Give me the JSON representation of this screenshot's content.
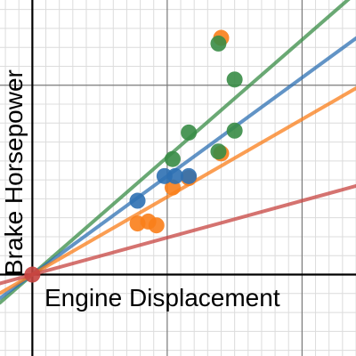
{
  "chart_data": {
    "type": "scatter",
    "title": "",
    "xlabel": "Engine Displacement",
    "ylabel": "Brake Horsepower",
    "grid": true,
    "xlim": [
      -1.2,
      12
    ],
    "ylim": [
      -2.15,
      7.25
    ],
    "series": [
      {
        "color": "#fa7e19",
        "points": [
          [
            7.0,
            6.25
          ],
          [
            7.0,
            3.2
          ],
          [
            5.8,
            2.55
          ],
          [
            5.2,
            2.3
          ],
          [
            3.9,
            1.35
          ],
          [
            4.3,
            1.4
          ],
          [
            4.6,
            1.3
          ]
        ]
      },
      {
        "color": "#388c46",
        "points": [
          [
            6.9,
            6.1
          ],
          [
            7.5,
            5.15
          ],
          [
            5.8,
            3.75
          ],
          [
            5.2,
            3.05
          ],
          [
            7.5,
            3.8
          ],
          [
            6.9,
            3.25
          ]
        ]
      },
      {
        "color": "#2d70b3",
        "points": [
          [
            4.9,
            2.6
          ],
          [
            5.3,
            2.6
          ],
          [
            3.9,
            1.95
          ],
          [
            5.8,
            2.6
          ]
        ]
      },
      {
        "color": "#c74440",
        "points": [
          [
            0.0,
            0.0
          ]
        ]
      }
    ],
    "lines": [
      {
        "color": "#388c46",
        "slope": 0.62
      },
      {
        "color": "#2d70b3",
        "slope": 0.52
      },
      {
        "color": "#fa7e19",
        "slope": 0.41
      },
      {
        "color": "#c74440",
        "slope": 0.195
      }
    ]
  }
}
